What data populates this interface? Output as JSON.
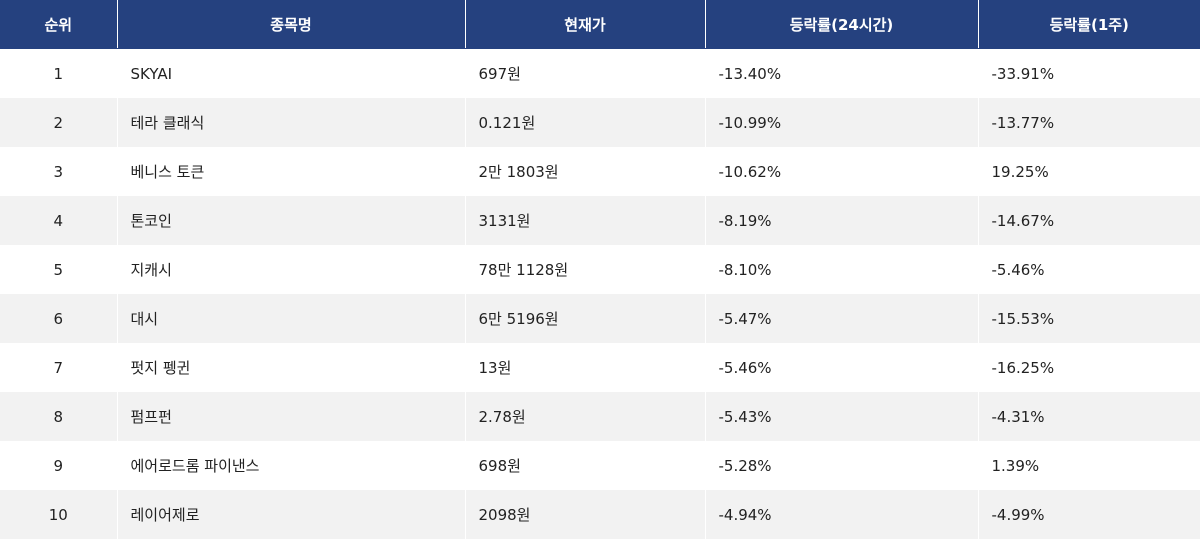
{
  "header": {
    "rank": "순위",
    "name": "종목명",
    "price": "현재가",
    "change_24h": "등락률(24시간)",
    "change_1w": "등락률(1주)"
  },
  "rows": [
    {
      "rank": "1",
      "name": "SKYAI",
      "price": "697원",
      "change_24h": "-13.40%",
      "change_1w": "-33.91%"
    },
    {
      "rank": "2",
      "name": "테라 클래식",
      "price": "0.121원",
      "change_24h": "-10.99%",
      "change_1w": "-13.77%"
    },
    {
      "rank": "3",
      "name": "베니스 토큰",
      "price": "2만 1803원",
      "change_24h": "-10.62%",
      "change_1w": "19.25%"
    },
    {
      "rank": "4",
      "name": "톤코인",
      "price": "3131원",
      "change_24h": "-8.19%",
      "change_1w": "-14.67%"
    },
    {
      "rank": "5",
      "name": "지캐시",
      "price": "78만 1128원",
      "change_24h": "-8.10%",
      "change_1w": "-5.46%"
    },
    {
      "rank": "6",
      "name": "대시",
      "price": "6만 5196원",
      "change_24h": "-5.47%",
      "change_1w": "-15.53%"
    },
    {
      "rank": "7",
      "name": "펏지 펭귄",
      "price": "13원",
      "change_24h": "-5.46%",
      "change_1w": "-16.25%"
    },
    {
      "rank": "8",
      "name": "펌프펀",
      "price": "2.78원",
      "change_24h": "-5.43%",
      "change_1w": "-4.31%"
    },
    {
      "rank": "9",
      "name": "에어로드롬 파이낸스",
      "price": "698원",
      "change_24h": "-5.28%",
      "change_1w": "1.39%"
    },
    {
      "rank": "10",
      "name": "레이어제로",
      "price": "2098원",
      "change_24h": "-4.94%",
      "change_1w": "-4.99%"
    }
  ],
  "colors": {
    "header_bg": "#25417f",
    "header_text": "#ffffff",
    "row_alt_bg": "#f2f2f2",
    "row_bg": "#ffffff",
    "text": "#222222"
  }
}
